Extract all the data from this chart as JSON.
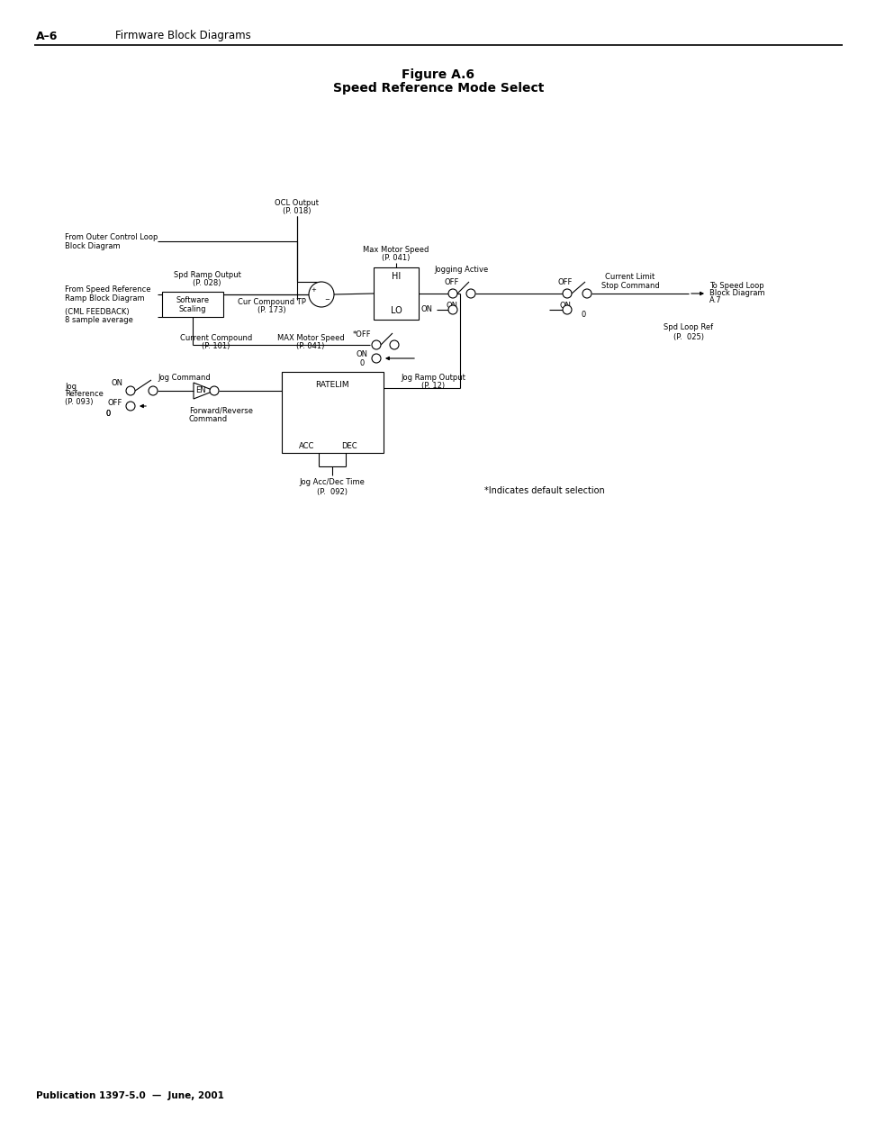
{
  "title_line1": "Figure A.6",
  "title_line2": "Speed Reference Mode Select",
  "header_left": "A–6",
  "header_right": "Firmware Block Diagrams",
  "footer": "Publication 1397-5.0  —  June, 2001",
  "note": "*Indicates default selection",
  "bg_color": "#ffffff",
  "line_color": "#000000",
  "text_color": "#000000"
}
